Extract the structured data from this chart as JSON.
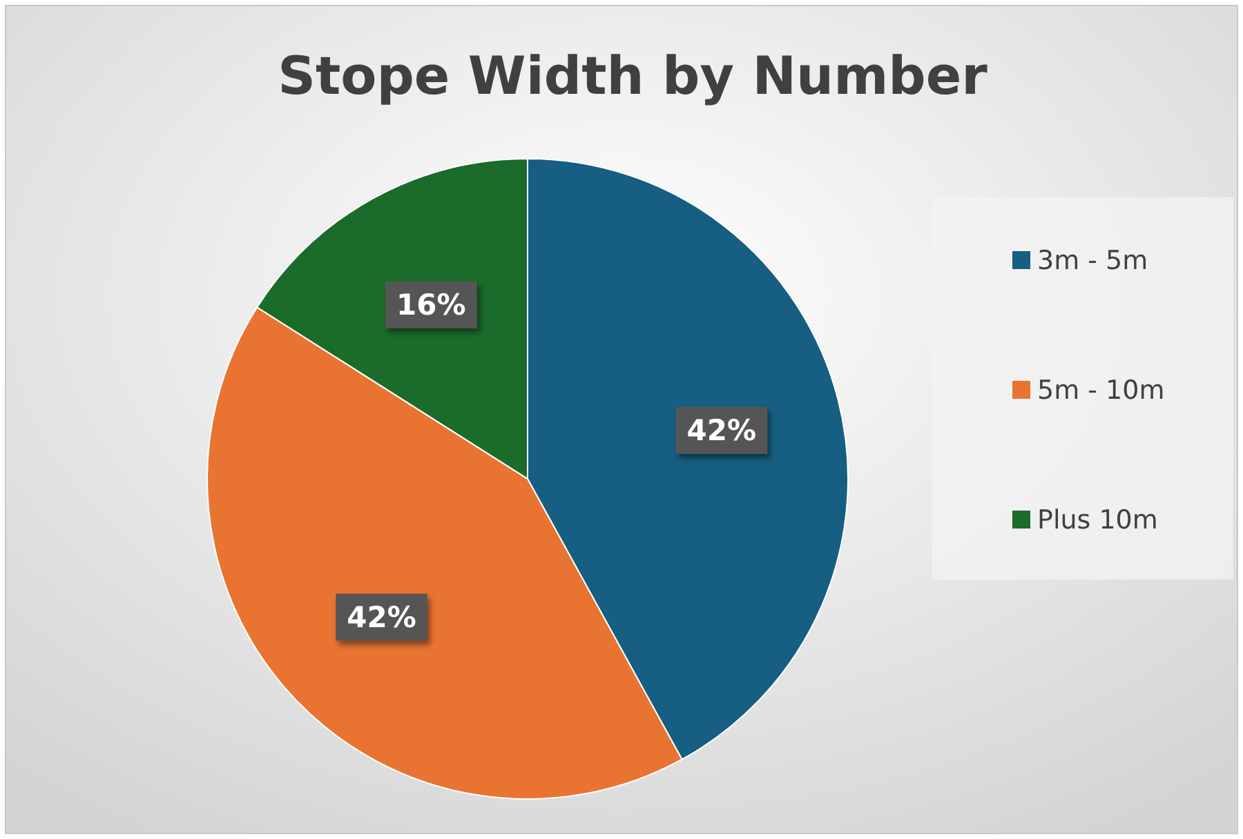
{
  "chart_data": {
    "type": "pie",
    "title": "Stope Width by Number",
    "categories": [
      "3m - 5m",
      "5m - 10m",
      "Plus 10m"
    ],
    "values": [
      42,
      42,
      16
    ],
    "colors": [
      "#165e82",
      "#e97432",
      "#1b6b2a"
    ],
    "value_labels": [
      "42%",
      "42%",
      "16%"
    ],
    "legend": "right"
  }
}
